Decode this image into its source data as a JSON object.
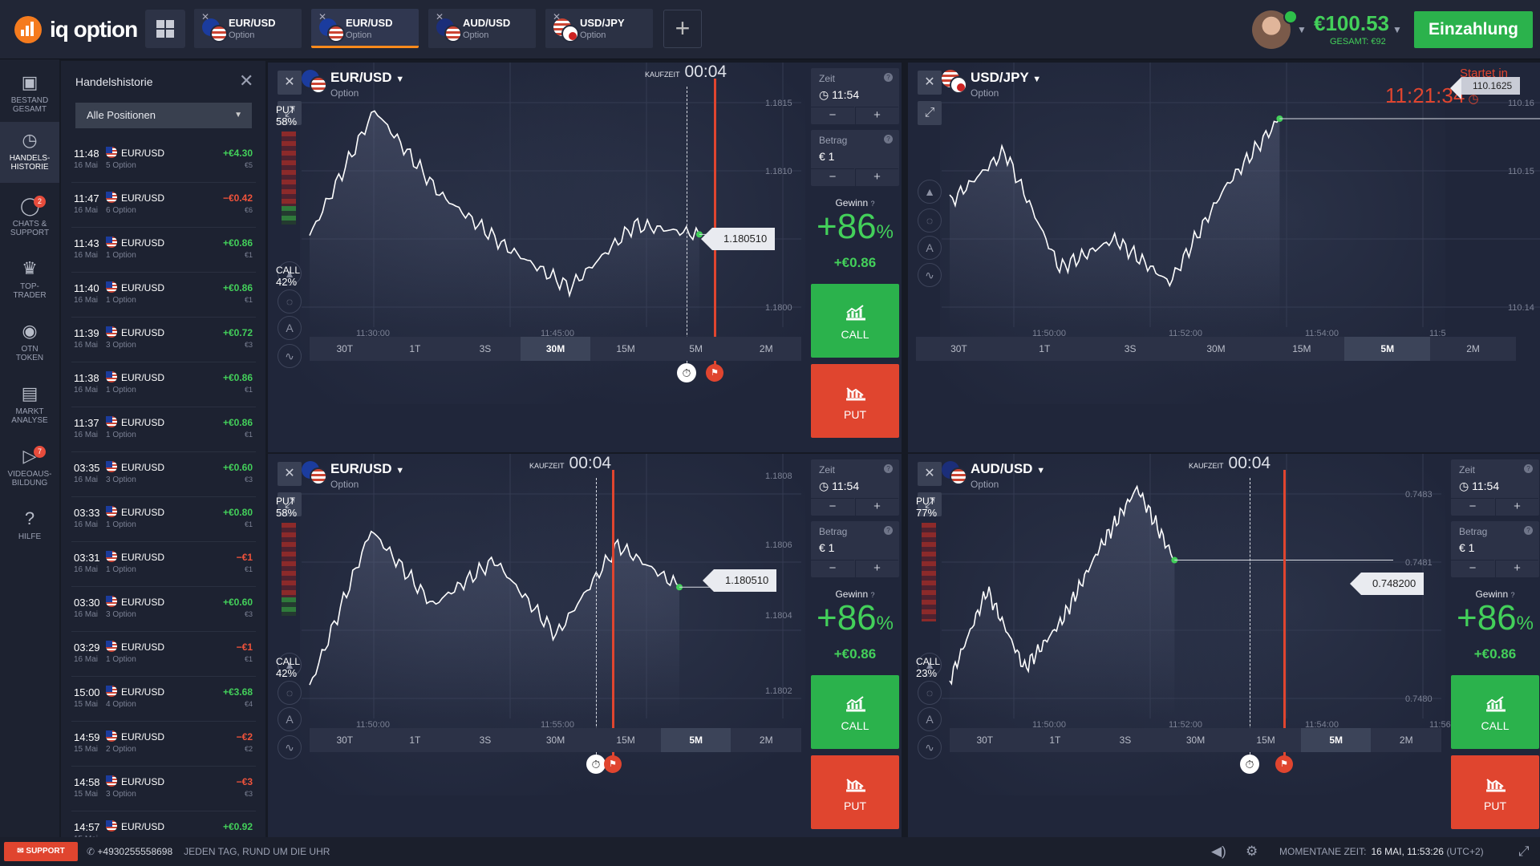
{
  "app": {
    "logo_text": "iq option"
  },
  "tabs": [
    {
      "pair": "EUR/USD",
      "type": "Option",
      "active": false
    },
    {
      "pair": "EUR/USD",
      "type": "Option",
      "active": true
    },
    {
      "pair": "AUD/USD",
      "type": "Option",
      "active": false
    },
    {
      "pair": "USD/JPY",
      "type": "Option",
      "active": false
    }
  ],
  "header": {
    "balance": "€100.53",
    "balance_sub": "GESAMT: €92",
    "deposit_label": "Einzahlung"
  },
  "leftnav": [
    {
      "label1": "BESTAND",
      "label2": "GESAMT",
      "icon": "briefcase-icon"
    },
    {
      "label1": "HANDELS-",
      "label2": "HISTORIE",
      "icon": "history-icon",
      "active": true
    },
    {
      "label1": "CHATS &",
      "label2": "SUPPORT",
      "icon": "chat-icon",
      "badge": "2"
    },
    {
      "label1": "TOP-",
      "label2": "TRADER",
      "icon": "trophy-icon"
    },
    {
      "label1": "OTN",
      "label2": "TOKEN",
      "icon": "token-icon"
    },
    {
      "label1": "MARKT",
      "label2": "ANALYSE",
      "icon": "news-icon"
    },
    {
      "label1": "VIDEOAUS-",
      "label2": "BILDUNG",
      "icon": "video-icon",
      "badge": "7"
    },
    {
      "label1": "HILFE",
      "label2": "",
      "icon": "help-icon"
    }
  ],
  "history": {
    "title": "Handelshistorie",
    "filter": "Alle Positionen",
    "rows": [
      {
        "time": "11:48",
        "date": "16 Mai",
        "pair": "EUR/USD",
        "options": "5 Option",
        "pnl": "+€4.30",
        "stake": "€5",
        "pos": true
      },
      {
        "time": "11:47",
        "date": "16 Mai",
        "pair": "EUR/USD",
        "options": "6 Option",
        "pnl": "−€0.42",
        "stake": "€6",
        "pos": false
      },
      {
        "time": "11:43",
        "date": "16 Mai",
        "pair": "EUR/USD",
        "options": "1 Option",
        "pnl": "+€0.86",
        "stake": "€1",
        "pos": true
      },
      {
        "time": "11:40",
        "date": "16 Mai",
        "pair": "EUR/USD",
        "options": "1 Option",
        "pnl": "+€0.86",
        "stake": "€1",
        "pos": true
      },
      {
        "time": "11:39",
        "date": "16 Mai",
        "pair": "EUR/USD",
        "options": "3 Option",
        "pnl": "+€0.72",
        "stake": "€3",
        "pos": true
      },
      {
        "time": "11:38",
        "date": "16 Mai",
        "pair": "EUR/USD",
        "options": "1 Option",
        "pnl": "+€0.86",
        "stake": "€1",
        "pos": true
      },
      {
        "time": "11:37",
        "date": "16 Mai",
        "pair": "EUR/USD",
        "options": "1 Option",
        "pnl": "+€0.86",
        "stake": "€1",
        "pos": true
      },
      {
        "time": "03:35",
        "date": "16 Mai",
        "pair": "EUR/USD",
        "options": "3 Option",
        "pnl": "+€0.60",
        "stake": "€3",
        "pos": true
      },
      {
        "time": "03:33",
        "date": "16 Mai",
        "pair": "EUR/USD",
        "options": "1 Option",
        "pnl": "+€0.80",
        "stake": "€1",
        "pos": true
      },
      {
        "time": "03:31",
        "date": "16 Mai",
        "pair": "EUR/USD",
        "options": "1 Option",
        "pnl": "−€1",
        "stake": "€1",
        "pos": false
      },
      {
        "time": "03:30",
        "date": "16 Mai",
        "pair": "EUR/USD",
        "options": "3 Option",
        "pnl": "+€0.60",
        "stake": "€3",
        "pos": true
      },
      {
        "time": "03:29",
        "date": "16 Mai",
        "pair": "EUR/USD",
        "options": "1 Option",
        "pnl": "−€1",
        "stake": "€1",
        "pos": false
      },
      {
        "time": "15:00",
        "date": "15 Mai",
        "pair": "EUR/USD",
        "options": "4 Option",
        "pnl": "+€3.68",
        "stake": "€4",
        "pos": true
      },
      {
        "time": "14:59",
        "date": "15 Mai",
        "pair": "EUR/USD",
        "options": "2 Option",
        "pnl": "−€2",
        "stake": "€2",
        "pos": false
      },
      {
        "time": "14:58",
        "date": "15 Mai",
        "pair": "EUR/USD",
        "options": "3 Option",
        "pnl": "−€3",
        "stake": "€3",
        "pos": false
      },
      {
        "time": "14:57",
        "date": "15 Mai",
        "pair": "EUR/USD",
        "options": "",
        "pnl": "+€0.92",
        "stake": "",
        "pos": true
      }
    ]
  },
  "timeframes": [
    "30T",
    "1T",
    "3S",
    "30M",
    "15M",
    "5M",
    "2M"
  ],
  "panels": [
    {
      "pair": "EUR/USD",
      "type": "Option",
      "flags": "eu",
      "put_label": "PUT",
      "put_pct": "58%",
      "call_label": "CALL",
      "call_pct": "42%",
      "kauf_label": "KAUFZEIT",
      "kauf_time": "00:04",
      "price": "1.180510",
      "y_labels": [
        "1.1815",
        "1.1810",
        "1.1800"
      ],
      "x_labels": [
        "11:30:00",
        "11:45:00"
      ],
      "selected_tf": "30M",
      "time_label": "Zeit",
      "time_value": "11:54",
      "amount_label": "Betrag",
      "amount_value": "€  1",
      "gain_label": "Gewinn",
      "gain_pct": "+86",
      "gain_eur": "+€0.86",
      "call": "CALL",
      "put": "PUT",
      "chart_data": {
        "type": "line",
        "x": [
          "11:25",
          "11:30",
          "11:35",
          "11:40",
          "11:45",
          "11:50",
          "11:52"
        ],
        "y": [
          1.1805,
          1.1817,
          1.1809,
          1.1804,
          1.18,
          1.1806,
          1.18051
        ],
        "ylim": [
          1.1797,
          1.182
        ]
      }
    },
    {
      "pair": "USD/JPY",
      "type": "Option",
      "flags": "usjp",
      "price": "110.1625",
      "y_labels": [
        "110.16",
        "110.15",
        "110.14"
      ],
      "x_labels": [
        "11:50:00",
        "11:52:00",
        "11:54:00",
        "11:5"
      ],
      "selected_tf": "5M",
      "startet_label": "Startet in",
      "startet_time": "11:21:34",
      "chart_data": {
        "type": "line",
        "x": [
          "11:48",
          "11:49",
          "11:50",
          "11:51",
          "11:52",
          "11:53",
          "11:53:30"
        ],
        "y": [
          110.151,
          110.158,
          110.142,
          110.146,
          110.14,
          110.153,
          110.1625
        ],
        "ylim": [
          110.135,
          110.168
        ]
      }
    },
    {
      "pair": "EUR/USD",
      "type": "Option",
      "flags": "eu",
      "put_label": "PUT",
      "put_pct": "58%",
      "call_label": "CALL",
      "call_pct": "42%",
      "kauf_label": "KAUFZEIT",
      "kauf_time": "00:04",
      "price": "1.180510",
      "y_labels": [
        "1.1808",
        "1.1806",
        "1.1804",
        "1.1802"
      ],
      "x_labels": [
        "11:50:00",
        "11:55:00"
      ],
      "selected_tf": "5M",
      "time_label": "Zeit",
      "time_value": "11:54",
      "amount_label": "Betrag",
      "amount_value": "€  1",
      "gain_label": "Gewinn",
      "gain_pct": "+86",
      "gain_eur": "+€0.86",
      "call": "CALL",
      "put": "PUT",
      "chart_data": {
        "type": "line",
        "x": [
          "11:47",
          "11:48",
          "11:49",
          "11:50",
          "11:51",
          "11:52",
          "11:53"
        ],
        "y": [
          1.18018,
          1.1807,
          1.18045,
          1.1806,
          1.18035,
          1.18065,
          1.18051
        ],
        "ylim": [
          1.1801,
          1.1809
        ]
      }
    },
    {
      "pair": "AUD/USD",
      "type": "Option",
      "flags": "au",
      "put_label": "PUT",
      "put_pct": "77%",
      "call_label": "CALL",
      "call_pct": "23%",
      "kauf_label": "KAUFZEIT",
      "kauf_time": "00:04",
      "price": "0.748200",
      "y_labels": [
        "0.7483",
        "0.7481",
        "0.7480"
      ],
      "x_labels": [
        "11:50:00",
        "11:52:00",
        "11:54:00",
        "11:56:0"
      ],
      "selected_tf": "5M",
      "time_label": "Zeit",
      "time_value": "11:54",
      "amount_label": "Betrag",
      "amount_value": "€  1",
      "gain_label": "Gewinn",
      "gain_pct": "+86",
      "gain_eur": "+€0.86",
      "call": "CALL",
      "put": "PUT",
      "chart_data": {
        "type": "line",
        "x": [
          "11:48",
          "11:49",
          "11:50",
          "11:51",
          "11:52",
          "11:53",
          "11:53:30"
        ],
        "y": [
          0.748,
          0.74815,
          0.74802,
          0.7481,
          0.74822,
          0.74832,
          0.7482
        ],
        "ylim": [
          0.74795,
          0.74835
        ]
      }
    }
  ],
  "footer": {
    "support": "SUPPORT",
    "phone": "+4930255558698",
    "hours": "JEDEN TAG, RUND UM DIE UHR",
    "time_label": "MOMENTANE ZEIT:",
    "time_value": "16 MAI, 11:53:26",
    "tz": "(UTC+2)"
  }
}
